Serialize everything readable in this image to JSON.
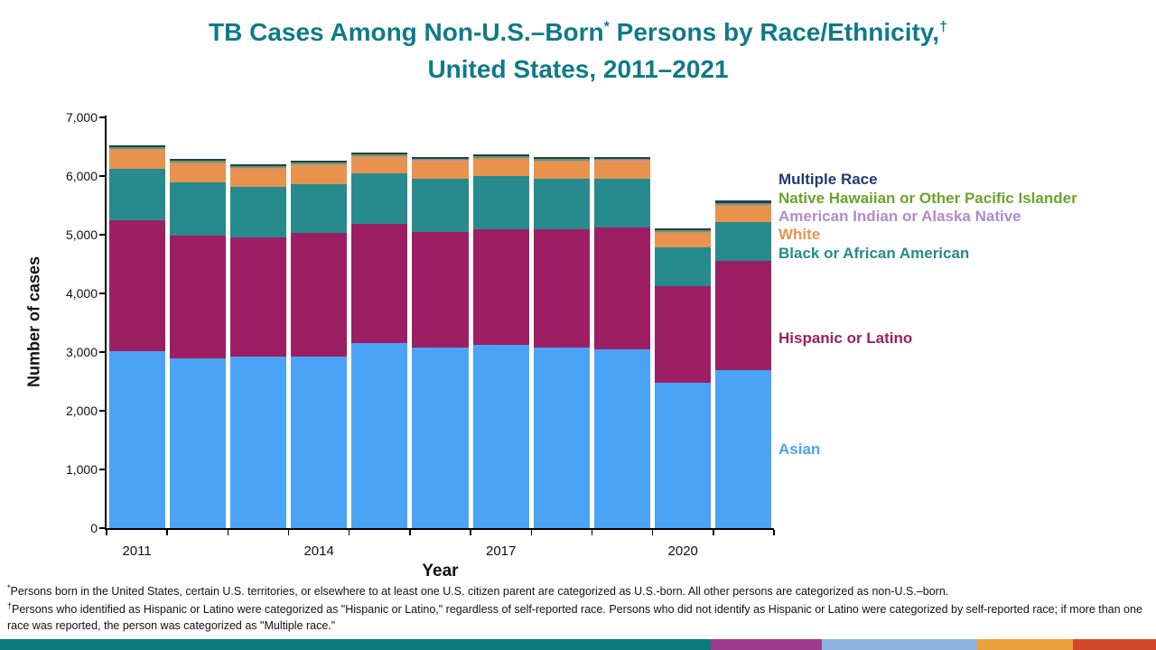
{
  "slide": {
    "title": {
      "line1_pre": "TB Cases Among Non-U.S.–Born",
      "sup1": "*",
      "line1_post": " Persons by Race/Ethnicity,",
      "sup2": "†",
      "line2": "United States, 2011–2021"
    }
  },
  "chart_data": {
    "type": "bar",
    "stacked": true,
    "title": "TB Cases Among Non-U.S.–Born Persons by Race/Ethnicity, United States, 2011–2021",
    "xlabel": "Year",
    "ylabel": "Number of cases",
    "ylim": [
      0,
      7000
    ],
    "y_tick_step": 1000,
    "y_ticks": [
      "0",
      "1,000",
      "2,000",
      "3,000",
      "4,000",
      "5,000",
      "6,000",
      "7,000"
    ],
    "categories": [
      "2011",
      "2012",
      "2013",
      "2014",
      "2015",
      "2016",
      "2017",
      "2018",
      "2019",
      "2020",
      "2021"
    ],
    "x_axis_labels": [
      {
        "index": 0,
        "label": "2011"
      },
      {
        "index": 3,
        "label": "2014"
      },
      {
        "index": 6,
        "label": "2017"
      },
      {
        "index": 9,
        "label": "2020"
      }
    ],
    "grid": false,
    "legend_position": "right",
    "series": [
      {
        "name": "Asian",
        "color": "#4BA3F5",
        "values": [
          3020,
          2900,
          2930,
          2930,
          3160,
          3080,
          3130,
          3080,
          3040,
          2480,
          2700
        ]
      },
      {
        "name": "Hispanic or Latino",
        "color": "#9C1F63",
        "values": [
          2230,
          2090,
          2030,
          2100,
          2030,
          1960,
          1970,
          2020,
          2080,
          1640,
          1860
        ]
      },
      {
        "name": "Black or African American",
        "color": "#278A8D",
        "values": [
          880,
          900,
          850,
          830,
          860,
          910,
          900,
          850,
          840,
          670,
          650
        ]
      },
      {
        "name": "White",
        "color": "#E8924E",
        "values": [
          310,
          320,
          310,
          320,
          270,
          310,
          300,
          300,
          300,
          250,
          290
        ]
      },
      {
        "name": "American Indian or Alaska Native",
        "color": "#B18AD2",
        "values": [
          15,
          15,
          15,
          15,
          15,
          15,
          15,
          15,
          15,
          10,
          10
        ]
      },
      {
        "name": "Native Hawaiian or Other Pacific Islander",
        "color": "#6FA22B",
        "values": [
          35,
          30,
          30,
          30,
          35,
          25,
          25,
          25,
          25,
          25,
          30
        ]
      },
      {
        "name": "Multiple Race",
        "color": "#1F3B70",
        "values": [
          40,
          35,
          35,
          35,
          30,
          30,
          30,
          30,
          30,
          35,
          45
        ]
      }
    ],
    "legend": [
      {
        "label": "Multiple Race",
        "color": "#1F3B70"
      },
      {
        "label": "Native Hawaiian or Other Pacific Islander",
        "color": "#6FA22B"
      },
      {
        "label": "American Indian or Alaska Native",
        "color": "#B18AD2"
      },
      {
        "label": "White",
        "color": "#E8924E"
      },
      {
        "label": "Black or African American",
        "color": "#278A8D"
      },
      {
        "label": "Hispanic or Latino",
        "color": "#9C1F63"
      },
      {
        "label": "Asian",
        "color": "#4BA3F5"
      }
    ]
  },
  "footnotes": [
    {
      "marker": "*",
      "text": "Persons born in the United States, certain U.S. territories, or elsewhere to at least one U.S. citizen parent are categorized as U.S.-born. All other persons are categorized as non-U.S.–born."
    },
    {
      "marker": "†",
      "text": "Persons who identified as Hispanic or Latino were categorized as \"Hispanic or Latino,\" regardless of self-reported race. Persons who did not identify as Hispanic or Latino were categorized by self-reported race; if more than one race was reported, the person was categorized as \"Multiple race.\""
    }
  ],
  "footer_stripe": [
    {
      "color": "#0D7A80",
      "width_pct": 61.5
    },
    {
      "color": "#9C3A8E",
      "width_pct": 9.6
    },
    {
      "color": "#8FB4E0",
      "width_pct": 13.4
    },
    {
      "color": "#E9A13B",
      "width_pct": 8.3
    },
    {
      "color": "#D2492A",
      "width_pct": 7.2
    }
  ]
}
